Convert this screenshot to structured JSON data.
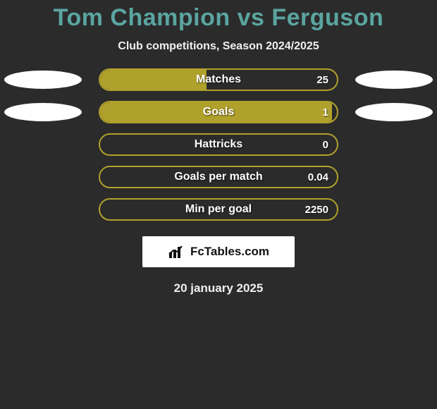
{
  "title_text": "Tom Champion vs Ferguson",
  "title_color": "#5aa5a0",
  "subtitle_text": "Club competitions, Season 2024/2025",
  "background_color": "#2b2b2b",
  "bar_outer_width": 340,
  "bar_outer_height": 32,
  "bar_border_color": "#b0a02c",
  "bar_fill_color": "#b0a02c",
  "ellipse_color": "#ffffff",
  "rows": [
    {
      "label": "Matches",
      "value": "25",
      "fill_pct": 45,
      "left_ellipse": true,
      "right_ellipse": true
    },
    {
      "label": "Goals",
      "value": "1",
      "fill_pct": 98,
      "left_ellipse": true,
      "right_ellipse": true
    },
    {
      "label": "Hattricks",
      "value": "0",
      "fill_pct": 0,
      "left_ellipse": false,
      "right_ellipse": false
    },
    {
      "label": "Goals per match",
      "value": "0.04",
      "fill_pct": 0,
      "left_ellipse": false,
      "right_ellipse": false
    },
    {
      "label": "Min per goal",
      "value": "2250",
      "fill_pct": 0,
      "left_ellipse": false,
      "right_ellipse": false
    }
  ],
  "logo_text": "FcTables.com",
  "date_text": "20 january 2025"
}
